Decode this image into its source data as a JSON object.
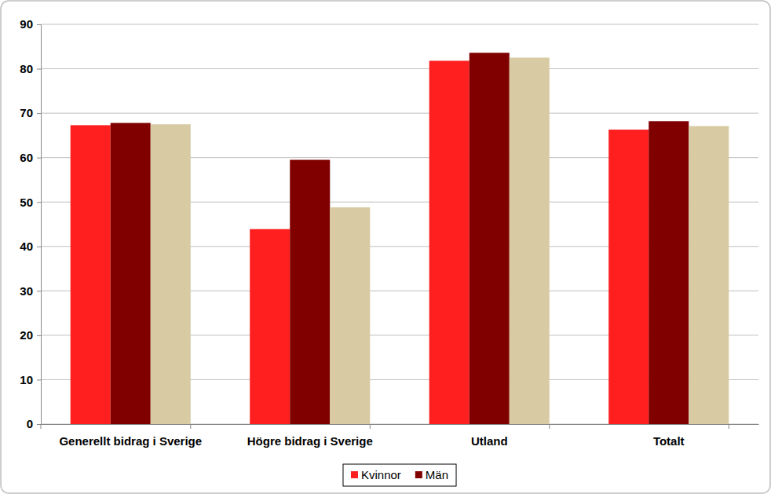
{
  "chart_data": {
    "type": "bar",
    "categories": [
      "Generellt bidrag i Sverige",
      "Högre bidrag i Sverige",
      "Utland",
      "Totalt"
    ],
    "series": [
      {
        "name": "Kvinnor",
        "color": "#ff1f1f",
        "values": [
          67.3,
          43.9,
          81.8,
          66.3
        ]
      },
      {
        "name": "Män",
        "color": "#800000",
        "values": [
          67.8,
          59.5,
          83.6,
          68.2
        ]
      },
      {
        "color": "#d8cba3",
        "values": [
          67.5,
          48.8,
          82.5,
          67.1
        ]
      }
    ],
    "ylim": [
      0,
      90
    ],
    "yticks": [
      0,
      10,
      20,
      30,
      40,
      50,
      60,
      70,
      80,
      90
    ],
    "grid": true,
    "legend": "bottom"
  }
}
